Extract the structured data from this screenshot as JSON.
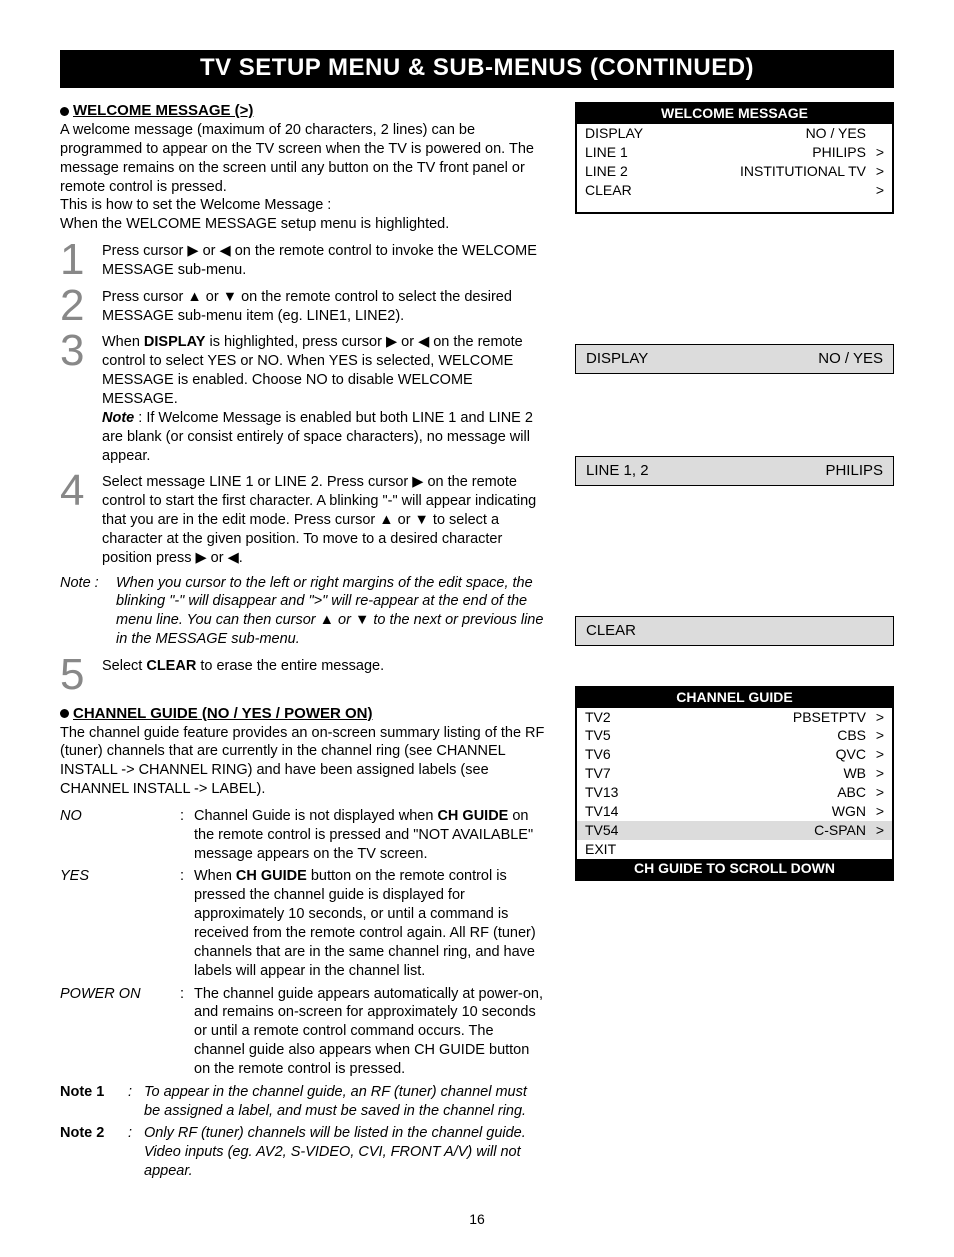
{
  "title": "TV SETUP MENU & SUB-MENUS (CONTINUED)",
  "page_number": "16",
  "welcome": {
    "heading": "WELCOME MESSAGE (>)",
    "intro1": "A welcome message (maximum of 20 characters, 2 lines) can be programmed to appear on the TV screen when the TV is powered on. The message remains on the screen until any button on the TV front panel or remote control is pressed.",
    "intro2": "This is how to set the Welcome Message :",
    "intro3": "When the WELCOME MESSAGE setup menu is highlighted.",
    "step1": "Press cursor ▶ or ◀ on the remote control to invoke the WELCOME MESSAGE sub-menu.",
    "step2": "Press cursor ▲ or ▼ on the remote control to select the desired MESSAGE sub-menu item (eg. LINE1, LINE2).",
    "step3a": "When ",
    "step3bold": "DISPLAY",
    "step3b": " is highlighted, press cursor ▶ or ◀ on the remote control to select YES or NO. When YES is selected, WELCOME MESSAGE is enabled. Choose NO to disable WELCOME MESSAGE.",
    "step3note_lbl": "Note",
    "step3note": " : If Welcome Message is enabled but both LINE 1 and LINE 2 are blank (or consist entirely of space characters), no message will appear.",
    "step4": "Select message LINE 1 or LINE 2.   Press cursor ▶ on the remote control to start the first character.  A blinking \"-\" will appear indicating that you are in the edit mode.  Press cursor ▲ or ▼ to select a character at the given position. To move to a desired character position press ▶ or ◀.",
    "step4note_lbl": "Note :",
    "step4note": "When you cursor to the left or right margins of the edit space, the blinking \"-\" will disappear and \">\" will re-appear at the end of the menu line.  You can then cursor ▲ or ▼ to the next or previous line in the MESSAGE sub-menu.",
    "step5a": "Select ",
    "step5bold": "CLEAR",
    "step5b": "  to erase the entire message."
  },
  "wm_box": {
    "title": "WELCOME MESSAGE",
    "r1l": "DISPLAY",
    "r1v": "NO / YES",
    "r2l": "LINE 1",
    "r2v": "PHILIPS",
    "r2a": ">",
    "r3l": "LINE 2",
    "r3v": "INSTITUTIONAL TV",
    "r3a": ">",
    "r4l": "CLEAR",
    "r4a": ">"
  },
  "gb1l": "DISPLAY",
  "gb1v": "NO / YES",
  "gb2l": "LINE 1, 2",
  "gb2v": "PHILIPS",
  "gb3l": "CLEAR",
  "cg": {
    "heading": "CHANNEL GUIDE",
    "heading_suffix": " (NO / YES / POWER ON)",
    "intro": "The channel guide feature provides an on-screen summary listing of the RF (tuner) channels that are currently in the channel ring (see CHANNEL INSTALL -> CHANNEL RING) and have been assigned labels (see CHANNEL INSTALL -> LABEL).",
    "no_l": "NO",
    "no_a": "Channel Guide is not displayed when ",
    "no_bold": "CH GUIDE",
    "no_b": " on the remote control is pressed and \"NOT AVAILABLE\" message appears on the TV screen.",
    "yes_l": "YES",
    "yes_a": "When ",
    "yes_bold": "CH GUIDE",
    "yes_b": " button on the remote control is pressed the channel guide is displayed for approximately 10 seconds, or until a command is received from the remote control again. All RF (tuner) channels that are in the same channel ring, and have labels will appear in the channel list.",
    "po_l": "POWER ON",
    "po": "The channel guide appears automatically at power-on, and remains on-screen for approximately 10 seconds or until a remote control command occurs. The channel guide also appears when CH GUIDE button on the remote control is pressed.",
    "n1l": "Note 1",
    "n1": "To appear in the channel guide, an RF (tuner) channel must be assigned a label, and must be saved in the channel ring.",
    "n2l": "Note 2",
    "n2": "Only RF (tuner) channels will be listed in the channel guide.  Video inputs (eg. AV2, S-VIDEO, CVI, FRONT A/V) will not appear."
  },
  "cg_box": {
    "title": "CHANNEL GUIDE",
    "rows": [
      {
        "l": "TV2",
        "v": "PBSETPTV",
        "a": ">"
      },
      {
        "l": "TV5",
        "v": "CBS",
        "a": ">"
      },
      {
        "l": "TV6",
        "v": "QVC",
        "a": ">"
      },
      {
        "l": "TV7",
        "v": "WB",
        "a": ">"
      },
      {
        "l": "TV13",
        "v": "ABC",
        "a": ">"
      },
      {
        "l": "TV14",
        "v": "WGN",
        "a": ">"
      },
      {
        "l": "TV54",
        "v": "C-SPAN",
        "a": ">",
        "hl": true
      },
      {
        "l": "EXIT",
        "v": "",
        "a": ""
      }
    ],
    "foot": "CH GUIDE TO SCROLL DOWN"
  }
}
